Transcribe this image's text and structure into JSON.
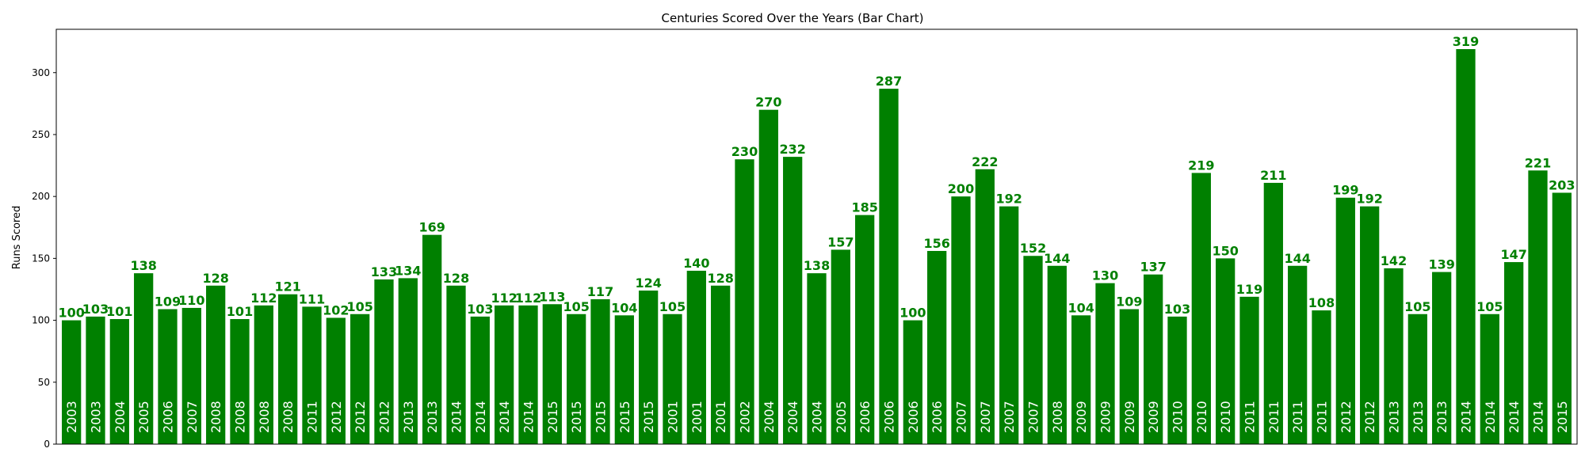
{
  "chart_data": {
    "type": "bar",
    "title": "Centuries Scored Over the Years (Bar Chart)",
    "xlabel": "",
    "ylabel": "Runs Scored",
    "ylim": [
      0,
      335
    ],
    "yticks": [
      "0",
      "50",
      "100",
      "150",
      "200",
      "250",
      "300"
    ],
    "bar_color": "#008000",
    "label_color": "#008000",
    "grid": false,
    "categories": [
      "2003",
      "2003",
      "2004",
      "2005",
      "2006",
      "2007",
      "2008",
      "2008",
      "2008",
      "2008",
      "2011",
      "2012",
      "2012",
      "2012",
      "2013",
      "2013",
      "2014",
      "2014",
      "2014",
      "2014",
      "2015",
      "2015",
      "2015",
      "2015",
      "2015",
      "2001",
      "2001",
      "2001",
      "2002",
      "2004",
      "2004",
      "2004",
      "2005",
      "2006",
      "2006",
      "2006",
      "2006",
      "2007",
      "2007",
      "2007",
      "2007",
      "2008",
      "2009",
      "2009",
      "2009",
      "2009",
      "2010",
      "2010",
      "2010",
      "2011",
      "2011",
      "2011",
      "2011",
      "2012",
      "2012",
      "2013",
      "2013",
      "2013",
      "2014",
      "2014",
      "2014",
      "2014",
      "2015"
    ],
    "values": [
      100,
      103,
      101,
      138,
      109,
      110,
      128,
      101,
      112,
      121,
      111,
      102,
      105,
      133,
      134,
      169,
      128,
      103,
      112,
      112,
      113,
      105,
      117,
      104,
      124,
      105,
      140,
      128,
      230,
      270,
      232,
      138,
      157,
      185,
      287,
      100,
      156,
      200,
      222,
      192,
      152,
      144,
      104,
      130,
      109,
      137,
      103,
      219,
      150,
      119,
      211,
      144,
      108,
      199,
      192,
      142,
      105,
      139,
      319,
      105,
      147,
      221,
      203
    ]
  }
}
